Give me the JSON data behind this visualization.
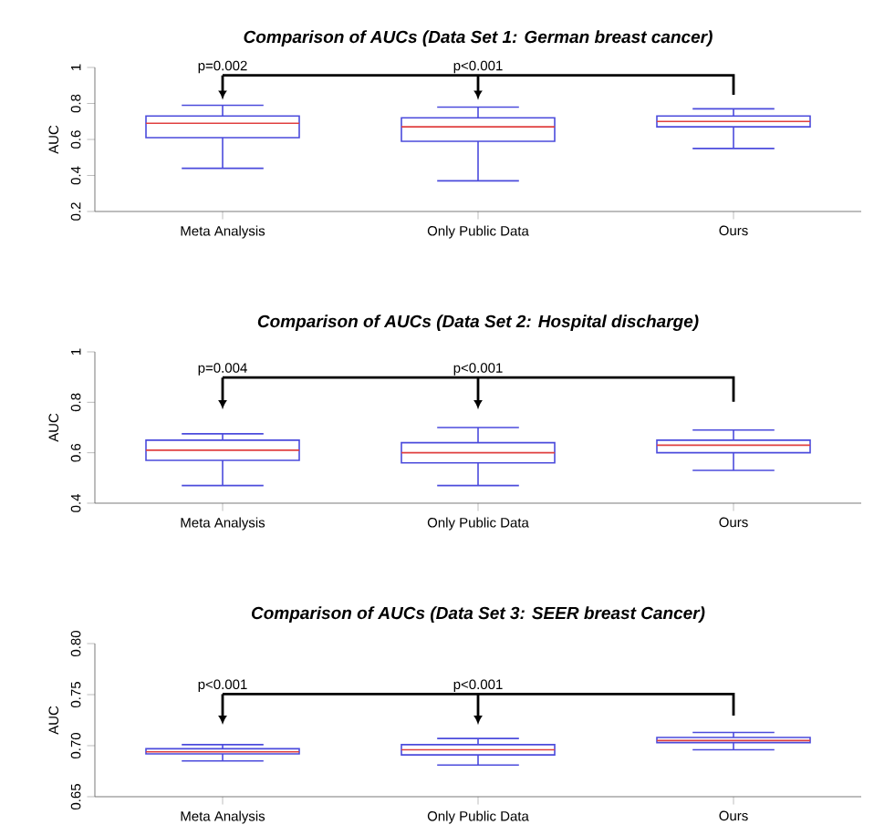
{
  "chart_data": [
    {
      "type": "box",
      "title": "Comparison of AUCs (Data Set 1: German breast cancer)",
      "ylabel": "AUC",
      "categories": [
        "Meta Analysis",
        "Only Public Data",
        "Ours"
      ],
      "color": "#4b4bdc",
      "boxes": [
        {
          "low": 0.44,
          "q1": 0.61,
          "median": 0.69,
          "q3": 0.73,
          "high": 0.79
        },
        {
          "low": 0.37,
          "q1": 0.59,
          "median": 0.67,
          "q3": 0.72,
          "high": 0.78
        },
        {
          "low": 0.55,
          "q1": 0.67,
          "median": 0.7,
          "q3": 0.73,
          "high": 0.77
        }
      ],
      "ylim": [
        0.2,
        1
      ],
      "yticks": [
        0.2,
        0.4,
        0.6,
        0.8,
        1
      ],
      "annotations": [
        "p=0.002",
        "p<0.001"
      ]
    },
    {
      "type": "box",
      "title": "Comparison of AUCs (Data Set 2: Hospital discharge)",
      "ylabel": "AUC",
      "categories": [
        "Meta Analysis",
        "Only Public Data",
        "Ours"
      ],
      "color": "#4b4bdc",
      "boxes": [
        {
          "low": 0.47,
          "q1": 0.57,
          "median": 0.61,
          "q3": 0.65,
          "high": 0.675
        },
        {
          "low": 0.47,
          "q1": 0.56,
          "median": 0.6,
          "q3": 0.64,
          "high": 0.7
        },
        {
          "low": 0.53,
          "q1": 0.6,
          "median": 0.63,
          "q3": 0.65,
          "high": 0.69
        }
      ],
      "ylim": [
        0.4,
        1
      ],
      "yticks": [
        0.4,
        0.6,
        0.8,
        1
      ],
      "annotations": [
        "p=0.004",
        "p<0.001"
      ]
    },
    {
      "type": "box",
      "title": "Comparison of AUCs (Data Set 3: SEER breast Cancer)",
      "ylabel": "AUC",
      "categories": [
        "Meta Analysis",
        "Only Public Data",
        "Ours"
      ],
      "color": "#4b4bdc",
      "boxes": [
        {
          "low": 0.685,
          "q1": 0.692,
          "median": 0.694,
          "q3": 0.697,
          "high": 0.701
        },
        {
          "low": 0.681,
          "q1": 0.691,
          "median": 0.696,
          "q3": 0.701,
          "high": 0.707
        },
        {
          "low": 0.696,
          "q1": 0.703,
          "median": 0.705,
          "q3": 0.708,
          "high": 0.713
        }
      ],
      "ylim": [
        0.65,
        0.8
      ],
      "yticks": [
        {
          "value": 0.65,
          "label": "0.65"
        },
        {
          "value": 0.7,
          "label": "0.70"
        },
        {
          "value": 0.75,
          "label": "0.75"
        },
        {
          "value": 0.8,
          "label": "0.80"
        }
      ],
      "annotations": [
        "p<0.001",
        "p<0.001"
      ]
    }
  ]
}
